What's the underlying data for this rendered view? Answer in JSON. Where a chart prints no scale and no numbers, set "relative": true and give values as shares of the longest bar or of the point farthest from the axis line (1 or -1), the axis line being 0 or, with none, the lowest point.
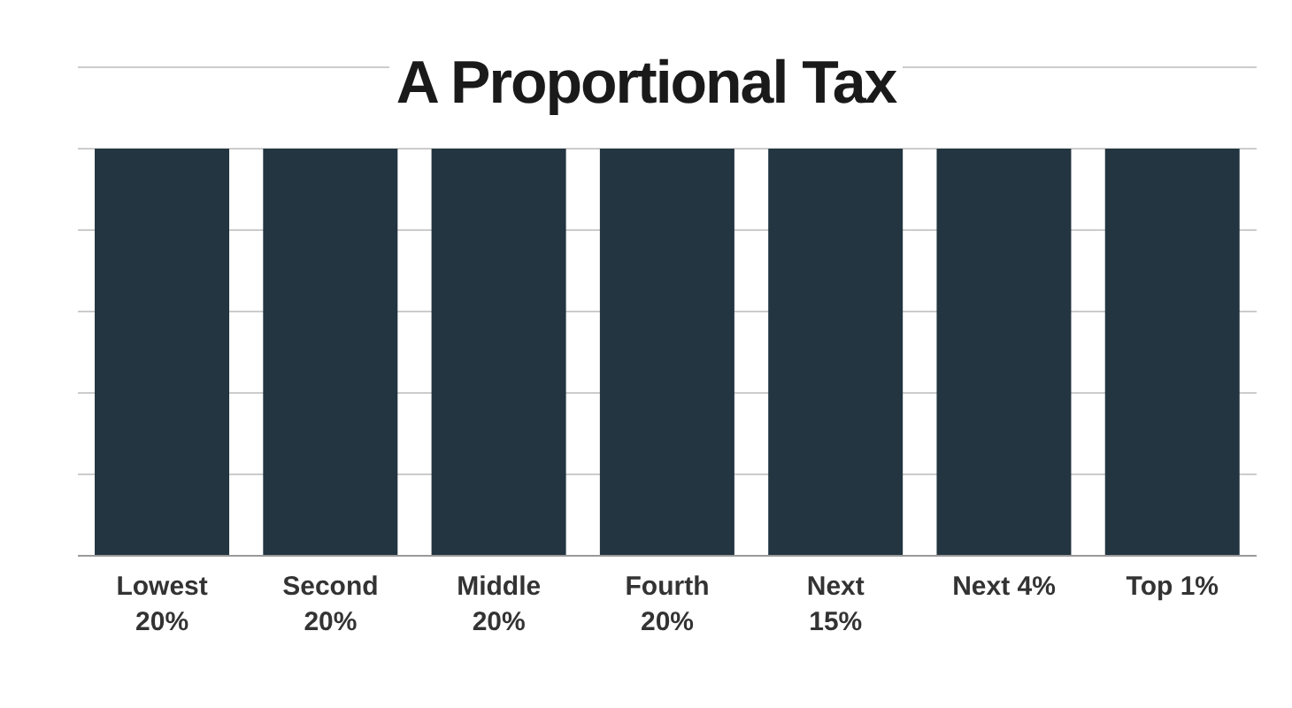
{
  "chart_data": {
    "type": "bar",
    "title": "A Proportional Tax",
    "categories": [
      "Lowest 20%",
      "Second 20%",
      "Middle 20%",
      "Fourth 20%",
      "Next 15%",
      "Next 4%",
      "Top 1%"
    ],
    "values": [
      1,
      1,
      1,
      1,
      1,
      1,
      1
    ],
    "color": "#223540",
    "relative": true,
    "grid": "y"
  }
}
